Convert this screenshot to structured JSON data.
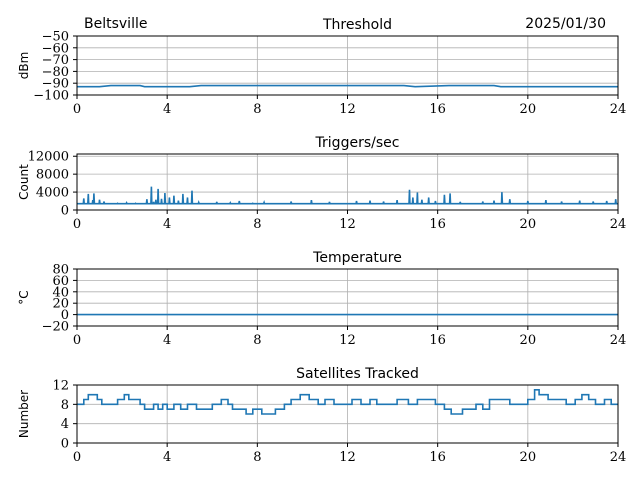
{
  "header": {
    "location": "Beltsville",
    "date": "2025/01/30"
  },
  "chart_data": [
    {
      "type": "line",
      "title": "Threshold",
      "ylabel": "dBm",
      "xlim": [
        0,
        24
      ],
      "ylim": [
        -100,
        -50
      ],
      "xticks": [
        0,
        4,
        8,
        12,
        16,
        20,
        24
      ],
      "yticks": [
        -100,
        -90,
        -80,
        -70,
        -60,
        -50
      ],
      "ytick_labels": [
        "−100",
        "−90",
        "−80",
        "−70",
        "−60",
        "−50"
      ],
      "grid": true,
      "series": [
        {
          "color": "#1f77b4",
          "x": [
            0,
            0.2,
            1.0,
            1.5,
            2.0,
            2.8,
            3.0,
            5.0,
            5.5,
            8.0,
            12.0,
            14.5,
            15.0,
            16.5,
            18.5,
            18.8,
            19.5,
            20.0,
            22.0,
            24.0
          ],
          "y": [
            -93,
            -93,
            -93,
            -92,
            -92,
            -92,
            -93,
            -93,
            -92,
            -92,
            -92,
            -92,
            -93,
            -92,
            -92,
            -93,
            -93,
            -93,
            -93,
            -93
          ]
        }
      ]
    },
    {
      "type": "line",
      "title": "Triggers/sec",
      "ylabel": "Count",
      "xlim": [
        0,
        24
      ],
      "ylim": [
        0,
        12500
      ],
      "xticks": [
        0,
        4,
        8,
        12,
        16,
        20,
        24
      ],
      "yticks": [
        0,
        4000,
        8000,
        12000
      ],
      "ytick_labels": [
        "0",
        "4000",
        "8000",
        "12000"
      ],
      "grid": true,
      "series": [
        {
          "color": "#1f77b4",
          "baseline": 1400,
          "spikes": [
            [
              0.3,
              2600
            ],
            [
              0.5,
              3600
            ],
            [
              0.7,
              2200
            ],
            [
              0.75,
              3700
            ],
            [
              1.0,
              2300
            ],
            [
              1.2,
              1900
            ],
            [
              1.8,
              1500
            ],
            [
              2.2,
              1600
            ],
            [
              2.6,
              1500
            ],
            [
              3.1,
              2400
            ],
            [
              3.3,
              5200
            ],
            [
              3.4,
              1800
            ],
            [
              3.5,
              2300
            ],
            [
              3.6,
              4700
            ],
            [
              3.75,
              2500
            ],
            [
              3.9,
              3800
            ],
            [
              4.1,
              2800
            ],
            [
              4.3,
              3200
            ],
            [
              4.5,
              2100
            ],
            [
              4.7,
              3600
            ],
            [
              4.9,
              2800
            ],
            [
              5.1,
              4300
            ],
            [
              5.4,
              1700
            ],
            [
              6.2,
              1800
            ],
            [
              6.8,
              1600
            ],
            [
              7.2,
              2000
            ],
            [
              7.8,
              1500
            ],
            [
              8.3,
              1700
            ],
            [
              9.5,
              1900
            ],
            [
              10.4,
              2200
            ],
            [
              11.2,
              1800
            ],
            [
              12.4,
              2000
            ],
            [
              13.0,
              2100
            ],
            [
              13.6,
              1900
            ],
            [
              14.2,
              2200
            ],
            [
              14.75,
              4500
            ],
            [
              14.9,
              2800
            ],
            [
              15.1,
              3900
            ],
            [
              15.3,
              2300
            ],
            [
              15.6,
              2800
            ],
            [
              15.9,
              2000
            ],
            [
              16.3,
              3400
            ],
            [
              16.55,
              3700
            ],
            [
              17.0,
              1800
            ],
            [
              18.0,
              1900
            ],
            [
              18.5,
              2100
            ],
            [
              18.85,
              4000
            ],
            [
              19.2,
              2400
            ],
            [
              20.0,
              2000
            ],
            [
              20.8,
              2200
            ],
            [
              21.5,
              1900
            ],
            [
              22.3,
              2100
            ],
            [
              22.9,
              1900
            ],
            [
              23.5,
              2000
            ],
            [
              23.9,
              2400
            ]
          ]
        }
      ]
    },
    {
      "type": "line",
      "title": "Temperature",
      "ylabel": "°C",
      "xlim": [
        0,
        24
      ],
      "ylim": [
        -20,
        80
      ],
      "xticks": [
        0,
        4,
        8,
        12,
        16,
        20,
        24
      ],
      "yticks": [
        -20,
        0,
        20,
        40,
        60,
        80
      ],
      "ytick_labels": [
        "−20",
        "0",
        "20",
        "40",
        "60",
        "80"
      ],
      "grid": true,
      "series": [
        {
          "color": "#1f77b4",
          "x": [
            0,
            24
          ],
          "y": [
            0,
            0
          ]
        }
      ]
    },
    {
      "type": "line",
      "title": "Satellites Tracked",
      "ylabel": "Number",
      "xlim": [
        0,
        24
      ],
      "ylim": [
        0,
        12
      ],
      "xticks": [
        0,
        4,
        8,
        12,
        16,
        20,
        24
      ],
      "yticks": [
        0,
        4,
        8,
        12
      ],
      "ytick_labels": [
        "0",
        "4",
        "8",
        "12"
      ],
      "grid": true,
      "series": [
        {
          "color": "#1f77b4",
          "steps": [
            [
              0,
              8
            ],
            [
              0.3,
              9
            ],
            [
              0.5,
              10
            ],
            [
              0.9,
              9
            ],
            [
              1.1,
              8
            ],
            [
              1.3,
              8
            ],
            [
              1.8,
              9
            ],
            [
              2.1,
              10
            ],
            [
              2.3,
              9
            ],
            [
              2.8,
              8
            ],
            [
              3.0,
              7
            ],
            [
              3.4,
              8
            ],
            [
              3.6,
              7
            ],
            [
              3.8,
              8
            ],
            [
              4.0,
              7
            ],
            [
              4.3,
              8
            ],
            [
              4.6,
              7
            ],
            [
              4.9,
              8
            ],
            [
              5.3,
              7
            ],
            [
              5.6,
              7
            ],
            [
              6.0,
              8
            ],
            [
              6.4,
              9
            ],
            [
              6.7,
              8
            ],
            [
              6.9,
              7
            ],
            [
              7.2,
              7
            ],
            [
              7.5,
              6
            ],
            [
              7.8,
              7
            ],
            [
              8.2,
              6
            ],
            [
              8.5,
              6
            ],
            [
              8.8,
              7
            ],
            [
              9.2,
              8
            ],
            [
              9.5,
              9
            ],
            [
              9.9,
              10
            ],
            [
              10.3,
              9
            ],
            [
              10.7,
              8
            ],
            [
              11.0,
              9
            ],
            [
              11.4,
              8
            ],
            [
              11.8,
              8
            ],
            [
              12.2,
              9
            ],
            [
              12.6,
              8
            ],
            [
              13.0,
              9
            ],
            [
              13.3,
              8
            ],
            [
              13.7,
              8
            ],
            [
              14.2,
              9
            ],
            [
              14.7,
              8
            ],
            [
              15.1,
              9
            ],
            [
              15.5,
              9
            ],
            [
              15.9,
              8
            ],
            [
              16.3,
              7
            ],
            [
              16.6,
              6
            ],
            [
              17.1,
              7
            ],
            [
              17.4,
              7
            ],
            [
              17.7,
              8
            ],
            [
              18.0,
              7
            ],
            [
              18.3,
              9
            ],
            [
              18.7,
              9
            ],
            [
              19.2,
              8
            ],
            [
              19.6,
              8
            ],
            [
              20.0,
              9
            ],
            [
              20.3,
              11
            ],
            [
              20.5,
              10
            ],
            [
              20.9,
              9
            ],
            [
              21.3,
              9
            ],
            [
              21.7,
              8
            ],
            [
              22.1,
              9
            ],
            [
              22.4,
              10
            ],
            [
              22.7,
              9
            ],
            [
              23.0,
              8
            ],
            [
              23.4,
              9
            ],
            [
              23.7,
              8
            ],
            [
              24.0,
              8
            ]
          ]
        }
      ]
    }
  ]
}
